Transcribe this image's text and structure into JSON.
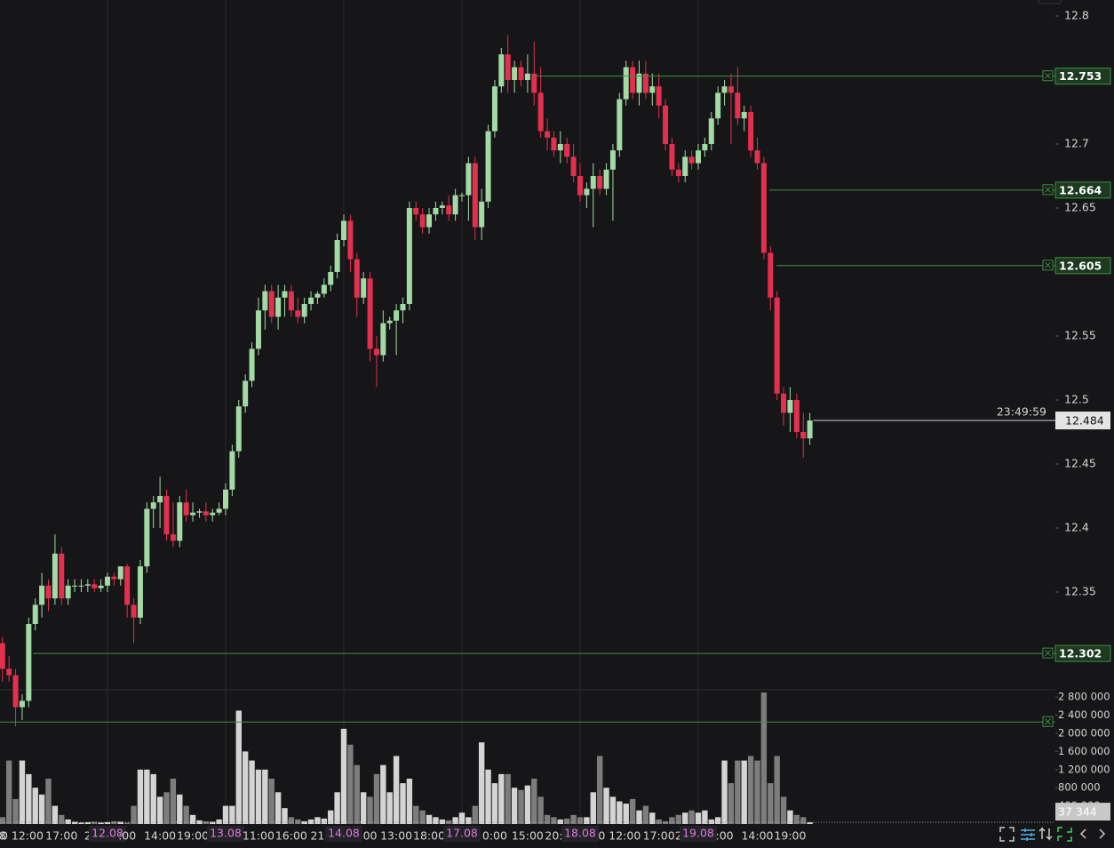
{
  "chart_data": {
    "type": "candlestick",
    "categories": [
      "8",
      null,
      null,
      "0 12:00",
      null,
      null,
      null,
      null,
      null,
      "17:00",
      null,
      null,
      null,
      "2",
      null,
      null,
      "12.08",
      null,
      null,
      ":00",
      null,
      null,
      null,
      null,
      "14:00",
      null,
      null,
      null,
      null,
      "19:00",
      null,
      null,
      null,
      null,
      "13.08",
      null,
      null,
      null,
      null,
      "11:00",
      null,
      null,
      null,
      null,
      "16:00",
      null,
      null,
      null,
      "21",
      null,
      null,
      null,
      "14.08",
      null,
      null,
      null,
      "00",
      null,
      null,
      null,
      "13:00",
      null,
      null,
      null,
      null,
      "18:00",
      null,
      null,
      null,
      null,
      "17.08",
      null,
      null,
      null,
      null,
      "0:00",
      null,
      null,
      null,
      null,
      "15:00",
      null,
      null,
      null,
      "20:",
      null,
      null,
      null,
      "18.08",
      null,
      null,
      null,
      null,
      null,
      "0 12:00",
      null,
      null,
      null,
      null,
      null,
      "17:00",
      null,
      null,
      "2",
      null,
      null,
      "19.08",
      null,
      null,
      null,
      ":00",
      null,
      null,
      null,
      null,
      "14:00",
      null,
      null,
      null,
      null,
      "19:00",
      null,
      null,
      null
    ],
    "ohlc": [
      [
        12.31,
        12.315,
        12.28,
        12.29
      ],
      [
        12.29,
        12.3,
        12.28,
        12.285
      ],
      [
        12.285,
        12.29,
        12.245,
        12.26
      ],
      [
        12.26,
        12.27,
        12.25,
        12.265
      ],
      [
        12.265,
        12.33,
        12.26,
        12.325
      ],
      [
        12.325,
        12.345,
        12.32,
        12.34
      ],
      [
        12.34,
        12.365,
        12.33,
        12.355
      ],
      [
        12.355,
        12.36,
        12.335,
        12.345
      ],
      [
        12.345,
        12.395,
        12.34,
        12.38
      ],
      [
        12.38,
        12.385,
        12.34,
        12.345
      ],
      [
        12.345,
        12.36,
        12.34,
        12.355
      ],
      [
        12.355,
        12.36,
        12.35,
        12.355
      ],
      [
        12.355,
        12.36,
        12.35,
        12.355
      ],
      [
        12.355,
        12.36,
        12.35,
        12.356
      ],
      [
        12.356,
        12.36,
        12.35,
        12.353
      ],
      [
        12.353,
        12.36,
        12.35,
        12.355
      ],
      [
        12.355,
        12.365,
        12.35,
        12.362
      ],
      [
        12.362,
        12.365,
        12.355,
        12.36
      ],
      [
        12.36,
        12.37,
        12.355,
        12.37
      ],
      [
        12.37,
        12.372,
        12.33,
        12.34
      ],
      [
        12.34,
        12.345,
        12.31,
        12.33
      ],
      [
        12.33,
        12.375,
        12.325,
        12.37
      ],
      [
        12.37,
        12.42,
        12.365,
        12.415
      ],
      [
        12.415,
        12.425,
        12.4,
        12.42
      ],
      [
        12.42,
        12.44,
        12.4,
        12.425
      ],
      [
        12.425,
        12.43,
        12.39,
        12.395
      ],
      [
        12.395,
        12.42,
        12.385,
        12.39
      ],
      [
        12.39,
        12.425,
        12.385,
        12.42
      ],
      [
        12.42,
        12.43,
        12.405,
        12.41
      ],
      [
        12.41,
        12.42,
        12.405,
        12.412
      ],
      [
        12.412,
        12.415,
        12.408,
        12.413
      ],
      [
        12.413,
        12.42,
        12.405,
        12.41
      ],
      [
        12.41,
        12.415,
        12.405,
        12.412
      ],
      [
        12.412,
        12.42,
        12.41,
        12.415
      ],
      [
        12.415,
        12.435,
        12.41,
        12.43
      ],
      [
        12.43,
        12.465,
        12.425,
        12.46
      ],
      [
        12.46,
        12.5,
        12.455,
        12.495
      ],
      [
        12.495,
        12.52,
        12.49,
        12.515
      ],
      [
        12.515,
        12.545,
        12.51,
        12.54
      ],
      [
        12.54,
        12.58,
        12.535,
        12.57
      ],
      [
        12.57,
        12.59,
        12.555,
        12.585
      ],
      [
        12.585,
        12.59,
        12.56,
        12.565
      ],
      [
        12.565,
        12.59,
        12.555,
        12.58
      ],
      [
        12.58,
        12.59,
        12.565,
        12.585
      ],
      [
        12.585,
        12.59,
        12.565,
        12.57
      ],
      [
        12.57,
        12.58,
        12.56,
        12.565
      ],
      [
        12.565,
        12.58,
        12.56,
        12.575
      ],
      [
        12.575,
        12.585,
        12.57,
        12.58
      ],
      [
        12.58,
        12.585,
        12.575,
        12.583
      ],
      [
        12.583,
        12.595,
        12.58,
        12.59
      ],
      [
        12.59,
        12.605,
        12.585,
        12.6
      ],
      [
        12.6,
        12.63,
        12.595,
        12.625
      ],
      [
        12.625,
        12.645,
        12.62,
        12.64
      ],
      [
        12.64,
        12.645,
        12.6,
        12.61
      ],
      [
        12.61,
        12.615,
        12.565,
        12.58
      ],
      [
        12.58,
        12.6,
        12.575,
        12.595
      ],
      [
        12.595,
        12.6,
        12.53,
        12.54
      ],
      [
        12.54,
        12.55,
        12.51,
        12.535
      ],
      [
        12.535,
        12.57,
        12.53,
        12.56
      ],
      [
        12.56,
        12.565,
        12.555,
        12.562
      ],
      [
        12.562,
        12.575,
        12.535,
        12.57
      ],
      [
        12.57,
        12.58,
        12.56,
        12.575
      ],
      [
        12.575,
        12.655,
        12.57,
        12.65
      ],
      [
        12.65,
        12.655,
        12.64,
        12.645
      ],
      [
        12.645,
        12.65,
        12.63,
        12.635
      ],
      [
        12.635,
        12.65,
        12.63,
        12.645
      ],
      [
        12.645,
        12.655,
        12.64,
        12.65
      ],
      [
        12.65,
        12.655,
        12.645,
        12.652
      ],
      [
        12.652,
        12.66,
        12.64,
        12.645
      ],
      [
        12.645,
        12.665,
        12.64,
        12.66
      ],
      [
        12.66,
        12.662,
        12.655,
        12.66
      ],
      [
        12.66,
        12.69,
        12.64,
        12.685
      ],
      [
        12.685,
        12.69,
        12.625,
        12.635
      ],
      [
        12.635,
        12.665,
        12.625,
        12.655
      ],
      [
        12.655,
        12.715,
        12.65,
        12.71
      ],
      [
        12.71,
        12.75,
        12.705,
        12.745
      ],
      [
        12.745,
        12.775,
        12.74,
        12.77
      ],
      [
        12.77,
        12.785,
        12.74,
        12.75
      ],
      [
        12.75,
        12.765,
        12.74,
        12.76
      ],
      [
        12.76,
        12.765,
        12.745,
        12.75
      ],
      [
        12.75,
        12.77,
        12.74,
        12.755
      ],
      [
        12.755,
        12.78,
        12.73,
        12.74
      ],
      [
        12.74,
        12.76,
        12.705,
        12.71
      ],
      [
        12.71,
        12.72,
        12.695,
        12.705
      ],
      [
        12.705,
        12.71,
        12.69,
        12.695
      ],
      [
        12.695,
        12.71,
        12.685,
        12.7
      ],
      [
        12.7,
        12.705,
        12.685,
        12.69
      ],
      [
        12.69,
        12.7,
        12.67,
        12.675
      ],
      [
        12.675,
        12.685,
        12.655,
        12.66
      ],
      [
        12.66,
        12.67,
        12.65,
        12.665
      ],
      [
        12.665,
        12.685,
        12.635,
        12.675
      ],
      [
        12.675,
        12.68,
        12.66,
        12.665
      ],
      [
        12.665,
        12.685,
        12.66,
        12.68
      ],
      [
        12.68,
        12.7,
        12.64,
        12.695
      ],
      [
        12.695,
        12.74,
        12.69,
        12.735
      ],
      [
        12.735,
        12.765,
        12.73,
        12.76
      ],
      [
        12.76,
        12.765,
        12.735,
        12.74
      ],
      [
        12.74,
        12.765,
        12.73,
        12.755
      ],
      [
        12.755,
        12.765,
        12.735,
        12.74
      ],
      [
        12.74,
        12.755,
        12.73,
        12.745
      ],
      [
        12.745,
        12.755,
        12.72,
        12.73
      ],
      [
        12.73,
        12.735,
        12.695,
        12.7
      ],
      [
        12.7,
        12.705,
        12.675,
        12.68
      ],
      [
        12.68,
        12.685,
        12.67,
        12.675
      ],
      [
        12.675,
        12.695,
        12.67,
        12.69
      ],
      [
        12.69,
        12.695,
        12.68,
        12.685
      ],
      [
        12.685,
        12.7,
        12.68,
        12.695
      ],
      [
        12.695,
        12.705,
        12.69,
        12.7
      ],
      [
        12.7,
        12.725,
        12.695,
        12.72
      ],
      [
        12.72,
        12.745,
        12.715,
        12.74
      ],
      [
        12.74,
        12.75,
        12.73,
        12.745
      ],
      [
        12.745,
        12.755,
        12.7,
        12.74
      ],
      [
        12.74,
        12.76,
        12.715,
        12.72
      ],
      [
        12.72,
        12.73,
        12.71,
        12.725
      ],
      [
        12.725,
        12.73,
        12.69,
        12.695
      ],
      [
        12.695,
        12.705,
        12.68,
        12.685
      ],
      [
        12.685,
        12.69,
        12.61,
        12.615
      ],
      [
        12.615,
        12.62,
        12.57,
        12.58
      ],
      [
        12.58,
        12.585,
        12.5,
        12.505
      ],
      [
        12.505,
        12.51,
        12.48,
        12.49
      ],
      [
        12.49,
        12.51,
        12.475,
        12.5
      ],
      [
        12.5,
        12.505,
        12.47,
        12.475
      ],
      [
        12.475,
        12.49,
        12.455,
        12.47
      ],
      [
        12.47,
        12.49,
        12.465,
        12.484
      ]
    ],
    "up_color": "#a3d9a5",
    "down_color": "#e3304f",
    "ylim": [
      12.24,
      12.8125
    ],
    "yticks": [
      12.8,
      12.7,
      12.65,
      12.55,
      12.5,
      12.45,
      12.4,
      12.35
    ],
    "levels": [
      12.753,
      12.664,
      12.605,
      12.302
    ],
    "level_color": "#3f8f44",
    "last_price": 12.484,
    "countdown": "23:49:59",
    "volume": {
      "values": [
        150000,
        1400000,
        550000,
        1400000,
        1100000,
        800000,
        650000,
        1000000,
        400000,
        200000,
        100000,
        50000,
        30000,
        40000,
        50000,
        30000,
        40000,
        60000,
        50000,
        30000,
        400000,
        1200000,
        1200000,
        1100000,
        600000,
        700000,
        1000000,
        650000,
        400000,
        200000,
        80000,
        60000,
        50000,
        100000,
        400000,
        400000,
        2500000,
        1600000,
        1400000,
        1200000,
        1200000,
        1000000,
        700000,
        350000,
        150000,
        100000,
        60000,
        100000,
        150000,
        120000,
        300000,
        700000,
        2100000,
        1750000,
        1300000,
        700000,
        600000,
        1100000,
        1300000,
        700000,
        1500000,
        900000,
        1000000,
        400000,
        300000,
        200000,
        150000,
        100000,
        80000,
        150000,
        250000,
        150000,
        400000,
        1800000,
        1200000,
        900000,
        1100000,
        1100000,
        800000,
        750000,
        850000,
        1000000,
        600000,
        200000,
        150000,
        100000,
        120000,
        200000,
        150000,
        150000,
        700000,
        1500000,
        800000,
        600000,
        500000,
        450000,
        550000,
        300000,
        400000,
        250000,
        100000,
        60000,
        150000,
        200000,
        250000,
        300000,
        250000,
        300000,
        100000,
        150000,
        1400000,
        900000,
        1400000,
        1400000,
        1500000,
        1400000,
        2900000,
        900000,
        1500000,
        600000,
        300000,
        200000,
        150000,
        37344
      ],
      "last_value_label": "37 344",
      "up_color": "#d4d4d4",
      "down_color": "#7d7d7d",
      "ylim": [
        0,
        2960000
      ],
      "yticks": [
        {
          "value": 2800000,
          "label": "2 800 000"
        },
        {
          "value": 2400000,
          "label": "2 400 000"
        },
        {
          "value": 2000000,
          "label": "2 000 000"
        },
        {
          "value": 1600000,
          "label": "1 600 000"
        },
        {
          "value": 1200000,
          "label": "1 200 000"
        },
        {
          "value": 800000,
          "label": "800 000"
        },
        {
          "value": 400000,
          "label": "400 000"
        }
      ],
      "levels": [
        2250000
      ]
    }
  }
}
